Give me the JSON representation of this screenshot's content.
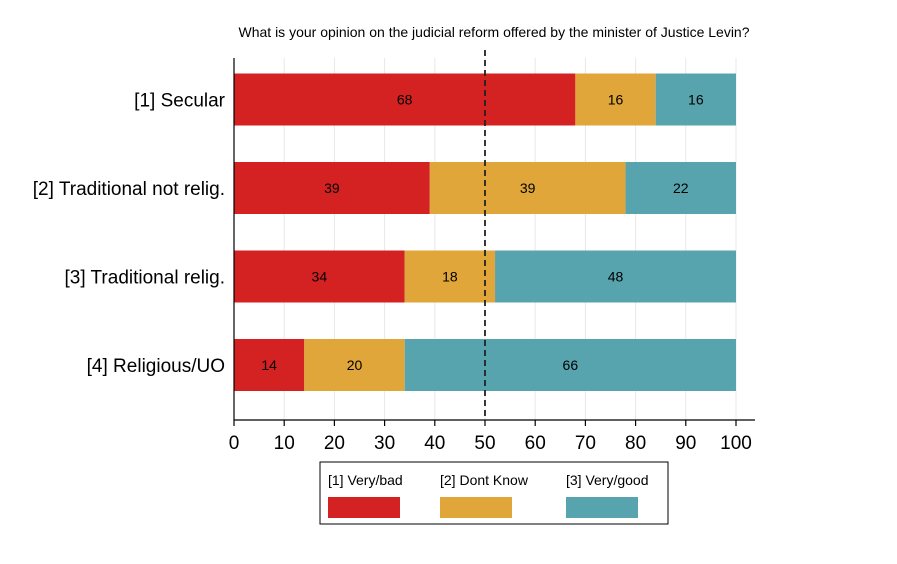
{
  "chart_data": {
    "type": "bar",
    "orientation": "horizontal",
    "stacked": true,
    "title": "What is your opinion on the judicial reform offered by the minister of Justice Levin?",
    "categories": [
      "[1] Secular",
      "[2] Traditional not relig.",
      "[3] Traditional relig.",
      "[4] Religious/UO"
    ],
    "series": [
      {
        "name": "[1] Very/bad",
        "color": "#d42121",
        "values": [
          68,
          39,
          34,
          14
        ]
      },
      {
        "name": "[2] Dont Know",
        "color": "#e0a63a",
        "values": [
          16,
          39,
          18,
          20
        ]
      },
      {
        "name": "[3] Very/good",
        "color": "#58a4ae",
        "values": [
          16,
          22,
          48,
          66
        ]
      }
    ],
    "xlim": [
      0,
      100
    ],
    "xticks": [
      0,
      10,
      20,
      30,
      40,
      50,
      60,
      70,
      80,
      90,
      100
    ],
    "reference_line": {
      "value": 50,
      "style": "dashed"
    },
    "grid": "vertical",
    "legend_position": "bottom"
  }
}
